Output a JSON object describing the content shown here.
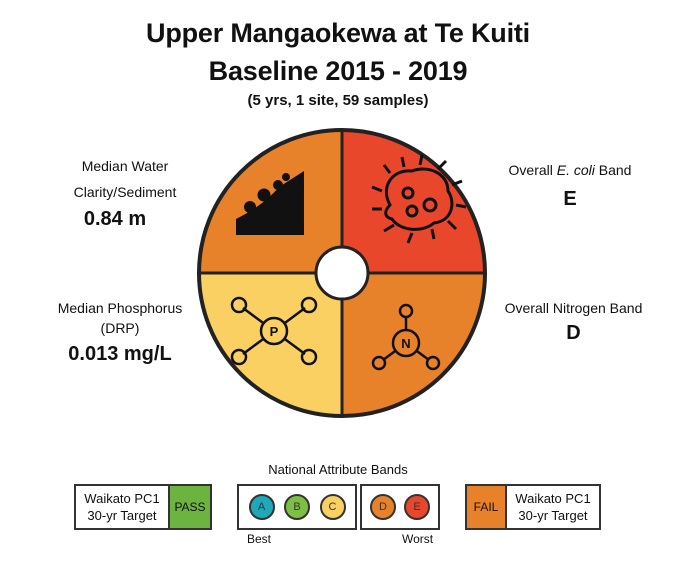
{
  "title_line1": "Upper Mangaokewa at Te Kuiti",
  "title_line2": "Baseline 2015 - 2019",
  "subtitle": "(5 yrs, 1 site, 59 samples)",
  "quadrants": {
    "clarity": {
      "label_line1": "Median Water",
      "label_line2": "Clarity/Sediment",
      "value": "0.84 m",
      "color": "#E8822A"
    },
    "ecoli": {
      "label_prefix": "Overall ",
      "label_italic": "E. coli",
      "label_suffix": " Band",
      "value": "E",
      "color": "#E8472C"
    },
    "phosphorus": {
      "label_line1": "Median Phosphorus",
      "label_line2": "(DRP)",
      "value": "0.013 mg/L",
      "color": "#FAD062",
      "icon_letter": "P"
    },
    "nitrogen": {
      "label": "Overall Nitrogen Band",
      "value": "D",
      "color": "#E8822A",
      "icon_letter": "N"
    }
  },
  "legend": {
    "title": "National Attribute Bands",
    "pc1_left_line1": "Waikato PC1",
    "pc1_left_line2": "30-yr Target",
    "pass_label": "PASS",
    "pass_color": "#6CB33F",
    "bands": [
      {
        "letter": "A",
        "color": "#1FA8B8"
      },
      {
        "letter": "B",
        "color": "#7DBF44"
      },
      {
        "letter": "C",
        "color": "#FAD062"
      },
      {
        "letter": "D",
        "color": "#E8822A"
      },
      {
        "letter": "E",
        "color": "#E8472C"
      }
    ],
    "best_label": "Best",
    "worst_label": "Worst",
    "fail_label": "FAIL",
    "fail_color": "#E8822A",
    "pc1_right_line1": "Waikato PC1",
    "pc1_right_line2": "30-yr Target"
  }
}
